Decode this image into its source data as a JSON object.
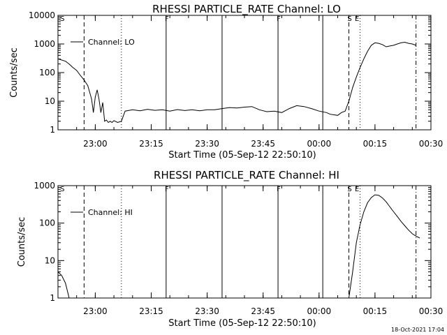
{
  "chart_data": [
    {
      "type": "line",
      "title": "RHESSI PARTICLE_RATE Channel: LO",
      "xlabel": "Start Time (05-Sep-12 22:50:10)",
      "ylabel": "Counts/sec",
      "yscale": "log",
      "ylim": [
        1,
        10000
      ],
      "y_ticks": [
        "1",
        "10",
        "100",
        "1000",
        "10000"
      ],
      "x_range": [
        "22:50",
        "00:30"
      ],
      "x_ticks": [
        {
          "t": "23:00",
          "label": "23:00"
        },
        {
          "t": "23:15",
          "label": "23:15"
        },
        {
          "t": "23:30",
          "label": "23:30"
        },
        {
          "t": "23:45",
          "label": "23:45"
        },
        {
          "t": "00:00",
          "label": "00:00"
        },
        {
          "t": "00:15",
          "label": "00:15"
        },
        {
          "t": "00:30",
          "label": "00:30"
        }
      ],
      "legend": {
        "label": "Channel: LO",
        "position": "top-left"
      },
      "grid": false,
      "flag_lines": [
        {
          "t": "22:57",
          "style": "dashed"
        },
        {
          "t": "23:07",
          "style": "dotted"
        },
        {
          "t": "23:19",
          "style": "solid"
        },
        {
          "t": "23:34",
          "style": "solid"
        },
        {
          "t": "23:49",
          "style": "solid"
        },
        {
          "t": "00:01",
          "style": "solid"
        },
        {
          "t": "00:08",
          "style": "dashed"
        },
        {
          "t": "00:11",
          "style": "dotted"
        },
        {
          "t": "00:26",
          "style": "dashdot"
        }
      ],
      "flag_labels": [
        {
          "t": "22:51",
          "text": "S"
        },
        {
          "t": "23:19",
          "text": "F"
        },
        {
          "t": "23:49",
          "text": "F"
        },
        {
          "t": "00:08",
          "text": "S"
        },
        {
          "t": "00:10",
          "text": "E"
        }
      ],
      "series": [
        {
          "color": "#000000",
          "points": [
            [
              "22:50",
              300
            ],
            [
              "22:52",
              250
            ],
            [
              "22:53",
              200
            ],
            [
              "22:54",
              150
            ],
            [
              "22:55",
              120
            ],
            [
              "22:56",
              80
            ],
            [
              "22:57",
              55
            ],
            [
              "22:58",
              35
            ],
            [
              "22:59",
              12
            ],
            [
              "22:59:30",
              4
            ],
            [
              "23:00",
              14
            ],
            [
              "23:00:30",
              25
            ],
            [
              "23:01",
              12
            ],
            [
              "23:01:30",
              4
            ],
            [
              "23:02",
              9
            ],
            [
              "23:02:30",
              2
            ],
            [
              "23:03",
              2.2
            ],
            [
              "23:03:30",
              1.8
            ],
            [
              "23:04",
              2
            ],
            [
              "23:04:30",
              1.8
            ],
            [
              "23:05",
              2.1
            ],
            [
              "23:06",
              1.8
            ],
            [
              "23:07",
              2
            ],
            [
              "23:08",
              4.5
            ],
            [
              "23:10",
              5
            ],
            [
              "23:12",
              4.6
            ],
            [
              "23:14",
              5.2
            ],
            [
              "23:16",
              4.8
            ],
            [
              "23:18",
              5
            ],
            [
              "23:20",
              4.5
            ],
            [
              "23:22",
              5.1
            ],
            [
              "23:24",
              4.7
            ],
            [
              "23:26",
              5
            ],
            [
              "23:28",
              4.6
            ],
            [
              "23:30",
              5
            ],
            [
              "23:32",
              5
            ],
            [
              "23:34",
              5.5
            ],
            [
              "23:36",
              6
            ],
            [
              "23:38",
              5.8
            ],
            [
              "23:40",
              6.2
            ],
            [
              "23:42",
              6.5
            ],
            [
              "23:44",
              5
            ],
            [
              "23:46",
              4.3
            ],
            [
              "23:48",
              4.5
            ],
            [
              "23:50",
              4
            ],
            [
              "23:52",
              5.5
            ],
            [
              "23:54",
              7
            ],
            [
              "23:56",
              6.5
            ],
            [
              "23:58",
              5.5
            ],
            [
              "00:00",
              4.5
            ],
            [
              "00:02",
              4
            ],
            [
              "00:03",
              3.5
            ],
            [
              "00:05",
              3.2
            ],
            [
              "00:06",
              4
            ],
            [
              "00:07",
              4.5
            ],
            [
              "00:08",
              10
            ],
            [
              "00:09",
              30
            ],
            [
              "00:10",
              70
            ],
            [
              "00:11",
              150
            ],
            [
              "00:12",
              300
            ],
            [
              "00:13",
              550
            ],
            [
              "00:14",
              900
            ],
            [
              "00:15",
              1100
            ],
            [
              "00:16",
              1050
            ],
            [
              "00:17",
              950
            ],
            [
              "00:18",
              800
            ],
            [
              "00:19",
              850
            ],
            [
              "00:20",
              900
            ],
            [
              "00:21",
              1000
            ],
            [
              "00:22",
              1100
            ],
            [
              "00:23",
              1150
            ],
            [
              "00:24",
              1050
            ],
            [
              "00:25",
              1000
            ],
            [
              "00:26",
              900
            ]
          ]
        }
      ]
    },
    {
      "type": "line",
      "title": "RHESSI PARTICLE_RATE Channel: HI",
      "xlabel": "Start Time (05-Sep-12 22:50:10)",
      "ylabel": "Counts/sec",
      "yscale": "log",
      "ylim": [
        1,
        1000
      ],
      "y_ticks": [
        "1",
        "10",
        "100",
        "1000"
      ],
      "x_range": [
        "22:50",
        "00:30"
      ],
      "x_ticks": [
        {
          "t": "23:00",
          "label": "23:00"
        },
        {
          "t": "23:15",
          "label": "23:15"
        },
        {
          "t": "23:30",
          "label": "23:30"
        },
        {
          "t": "23:45",
          "label": "23:45"
        },
        {
          "t": "00:00",
          "label": "00:00"
        },
        {
          "t": "00:15",
          "label": "00:15"
        },
        {
          "t": "00:30",
          "label": "00:30"
        }
      ],
      "legend": {
        "label": "Channel: HI",
        "position": "top-left"
      },
      "grid": false,
      "flag_lines": [
        {
          "t": "22:57",
          "style": "dashed"
        },
        {
          "t": "23:07",
          "style": "dotted"
        },
        {
          "t": "23:19",
          "style": "solid"
        },
        {
          "t": "23:34",
          "style": "solid"
        },
        {
          "t": "23:49",
          "style": "solid"
        },
        {
          "t": "00:01",
          "style": "solid"
        },
        {
          "t": "00:08",
          "style": "dashed"
        },
        {
          "t": "00:11",
          "style": "dotted"
        },
        {
          "t": "00:26",
          "style": "dashdot"
        }
      ],
      "flag_labels": [
        {
          "t": "22:51",
          "text": "S"
        },
        {
          "t": "23:19",
          "text": "F"
        },
        {
          "t": "23:49",
          "text": "F"
        },
        {
          "t": "00:08",
          "text": "S"
        },
        {
          "t": "00:10",
          "text": "E"
        }
      ],
      "series": [
        {
          "color": "#000000",
          "points": [
            [
              "22:50",
              5
            ],
            [
              "22:51",
              4
            ],
            [
              "22:52",
              2.5
            ],
            [
              "22:53",
              1
            ]
          ]
        },
        {
          "color": "#000000",
          "points": [
            [
              "00:08",
              1
            ],
            [
              "00:09",
              5
            ],
            [
              "00:10",
              30
            ],
            [
              "00:11",
              90
            ],
            [
              "00:12",
              200
            ],
            [
              "00:13",
              350
            ],
            [
              "00:14",
              480
            ],
            [
              "00:15",
              570
            ],
            [
              "00:16",
              550
            ],
            [
              "00:17",
              470
            ],
            [
              "00:18",
              370
            ],
            [
              "00:19",
              270
            ],
            [
              "00:20",
              200
            ],
            [
              "00:21",
              150
            ],
            [
              "00:22",
              110
            ],
            [
              "00:23",
              85
            ],
            [
              "00:24",
              65
            ],
            [
              "00:25",
              52
            ],
            [
              "00:26",
              45
            ],
            [
              "00:27",
              40
            ]
          ]
        }
      ]
    }
  ],
  "footer": {
    "timestamp": "18-Oct-2021 17:04"
  }
}
